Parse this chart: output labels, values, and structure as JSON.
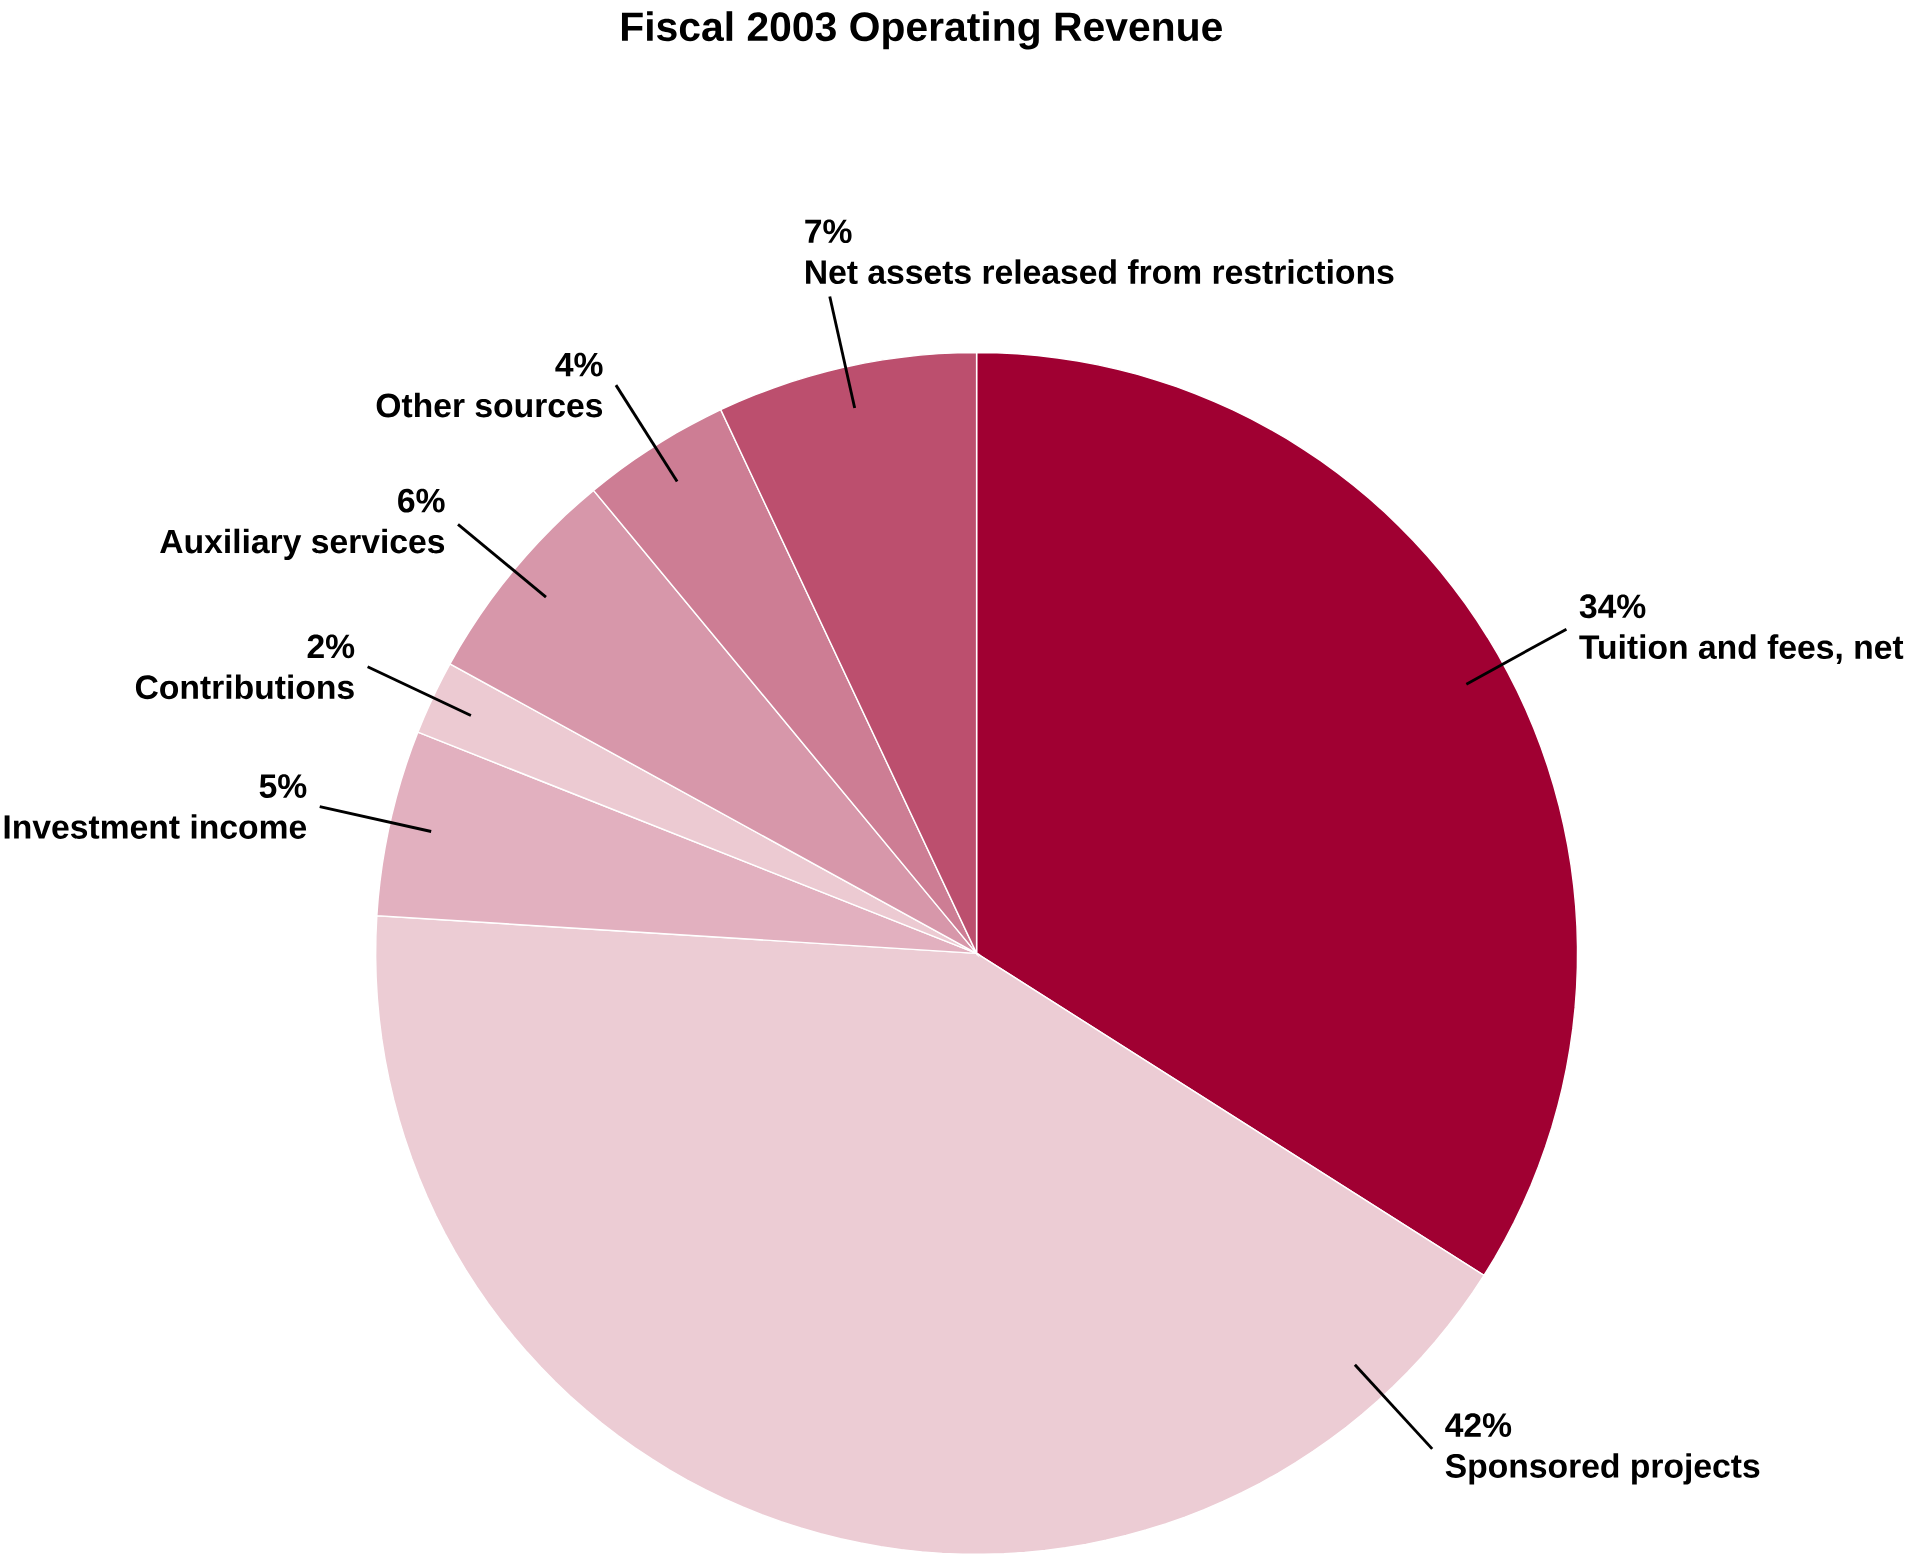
{
  "chart_data": {
    "type": "pie",
    "title": "Fiscal 2003 Operating Revenue",
    "categories": [
      "Tuition and fees, net",
      "Sponsored projects",
      "Investment income",
      "Contributions",
      "Auxiliary services",
      "Other sources",
      "Net assets released from restrictions"
    ],
    "values": [
      34,
      42,
      5,
      2,
      6,
      4,
      7
    ],
    "value_labels": [
      "34%",
      "42%",
      "5%",
      "2%",
      "6%",
      "4%",
      "7%"
    ],
    "colors": [
      "#a00032",
      "#ecccd4",
      "#e2b0bf",
      "#eccad2",
      "#d797aa",
      "#cd7d94",
      "#bc4f6e"
    ]
  }
}
